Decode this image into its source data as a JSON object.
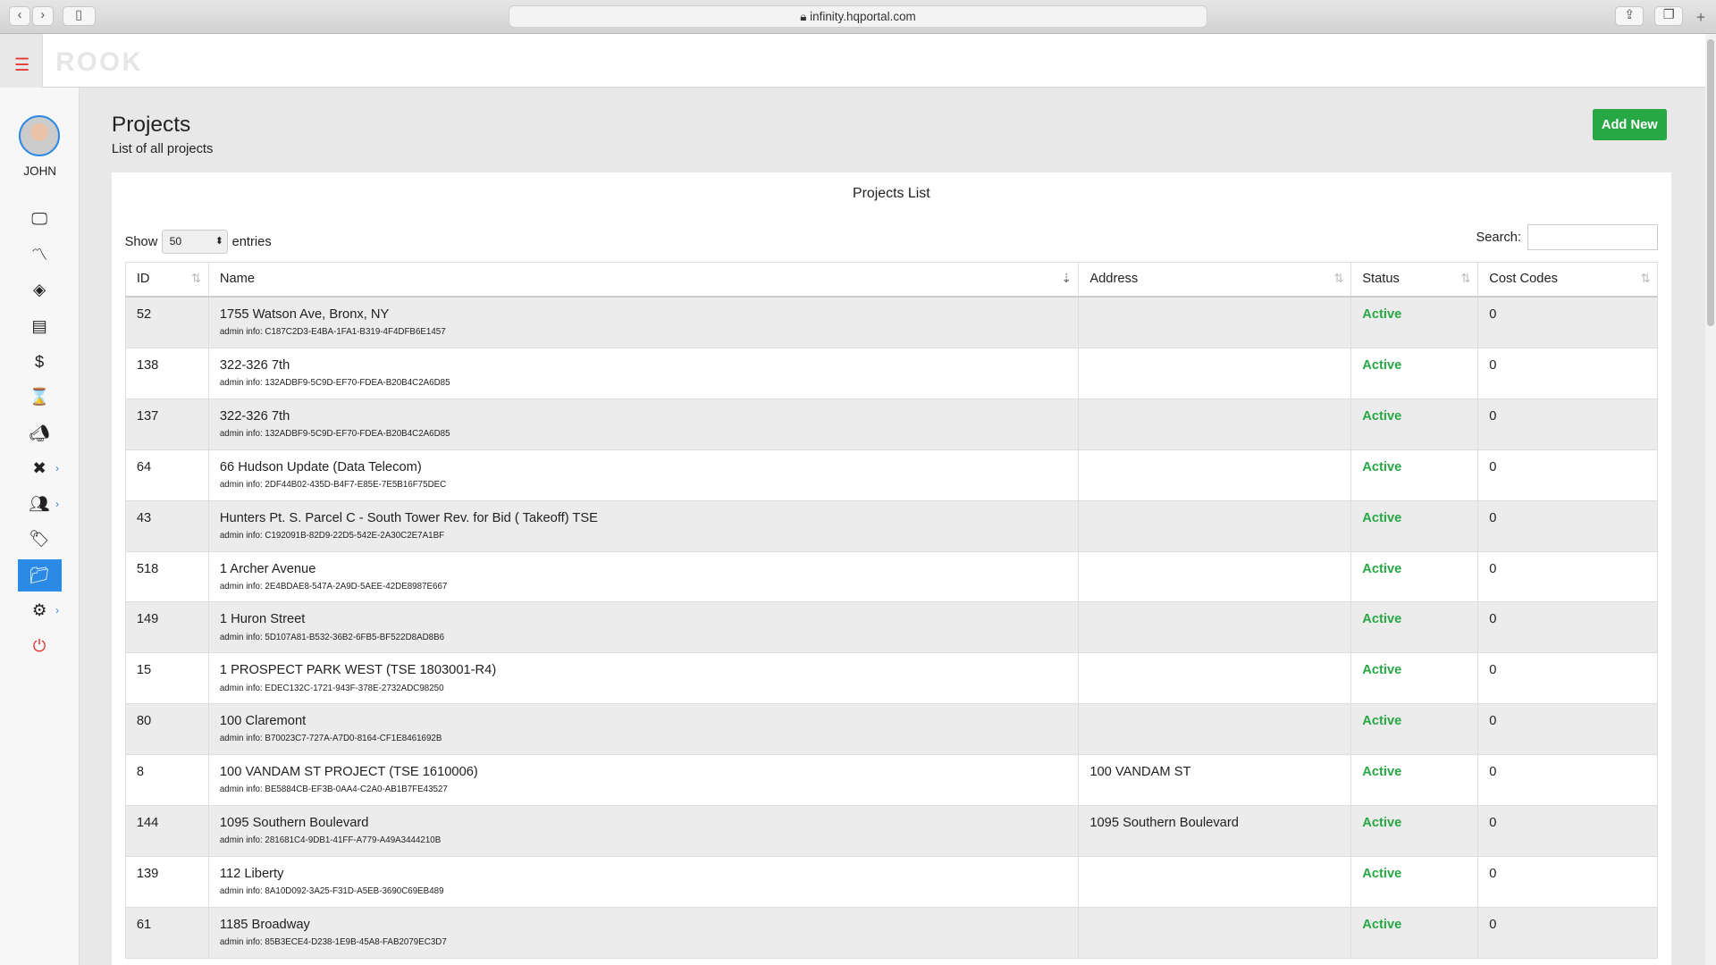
{
  "browser": {
    "url": "infinity.hqportal.com"
  },
  "app": {
    "logo": "ROOK",
    "user": "JOHN"
  },
  "page": {
    "title": "Projects",
    "subtitle": "List of all projects",
    "add_new": "Add New"
  },
  "panel": {
    "title": "Projects List",
    "show_label": "Show",
    "entries_label": "entries",
    "page_size": "50",
    "search_label": "Search:",
    "search_value": ""
  },
  "columns": [
    "ID",
    "Name",
    "Address",
    "Status",
    "Cost Codes"
  ],
  "rows": [
    {
      "id": "52",
      "name": "1755 Watson Ave, Bronx, NY",
      "admin": "admin info: C187C2D3-E4BA-1FA1-B319-4F4DFB6E1457",
      "address": "",
      "status": "Active",
      "cost": "0"
    },
    {
      "id": "138",
      "name": "322-326 7th",
      "admin": "admin info: 132ADBF9-5C9D-EF70-FDEA-B20B4C2A6D85",
      "address": "",
      "status": "Active",
      "cost": "0"
    },
    {
      "id": "137",
      "name": "322-326 7th",
      "admin": "admin info: 132ADBF9-5C9D-EF70-FDEA-B20B4C2A6D85",
      "address": "",
      "status": "Active",
      "cost": "0"
    },
    {
      "id": "64",
      "name": "66 Hudson Update (Data Telecom)",
      "admin": "admin info: 2DF44B02-435D-B4F7-E85E-7E5B16F75DEC",
      "address": "",
      "status": "Active",
      "cost": "0"
    },
    {
      "id": "43",
      "name": "Hunters Pt. S. Parcel C - South Tower Rev. for Bid ( Takeoff) TSE",
      "admin": "admin info: C192091B-82D9-22D5-542E-2A30C2E7A1BF",
      "address": "",
      "status": "Active",
      "cost": "0"
    },
    {
      "id": "518",
      "name": "1 Archer Avenue",
      "admin": "admin info: 2E4BDAE8-547A-2A9D-5AEE-42DE8987E667",
      "address": "",
      "status": "Active",
      "cost": "0"
    },
    {
      "id": "149",
      "name": "1 Huron Street",
      "admin": "admin info: 5D107A81-B532-36B2-6FB5-BF522D8AD8B6",
      "address": "",
      "status": "Active",
      "cost": "0"
    },
    {
      "id": "15",
      "name": "1 PROSPECT PARK WEST (TSE 1803001-R4)",
      "admin": "admin info: EDEC132C-1721-943F-378E-2732ADC98250",
      "address": "",
      "status": "Active",
      "cost": "0"
    },
    {
      "id": "80",
      "name": "100 Claremont",
      "admin": "admin info: B70023C7-727A-A7D0-8164-CF1E8461692B",
      "address": "",
      "status": "Active",
      "cost": "0"
    },
    {
      "id": "8",
      "name": "100 VANDAM ST PROJECT (TSE 1610006)",
      "admin": "admin info: BE5884CB-EF3B-0AA4-C2A0-AB1B7FE43527",
      "address": "100 VANDAM ST",
      "status": "Active",
      "cost": "0"
    },
    {
      "id": "144",
      "name": "1095 Southern Boulevard",
      "admin": "admin info: 281681C4-9DB1-41FF-A779-A49A3444210B",
      "address": "1095 Southern Boulevard",
      "status": "Active",
      "cost": "0"
    },
    {
      "id": "139",
      "name": "112 Liberty",
      "admin": "admin info: 8A10D092-3A25-F31D-A5EB-3690C69EB489",
      "address": "",
      "status": "Active",
      "cost": "0"
    },
    {
      "id": "61",
      "name": "1185 Broadway",
      "admin": "admin info: 85B3ECE4-D238-1E9B-45A8-FAB2079EC3D7",
      "address": "",
      "status": "Active",
      "cost": "0"
    }
  ],
  "colors": {
    "accent": "#2b8ae6",
    "success": "#28a745",
    "menu": "#e53935"
  }
}
